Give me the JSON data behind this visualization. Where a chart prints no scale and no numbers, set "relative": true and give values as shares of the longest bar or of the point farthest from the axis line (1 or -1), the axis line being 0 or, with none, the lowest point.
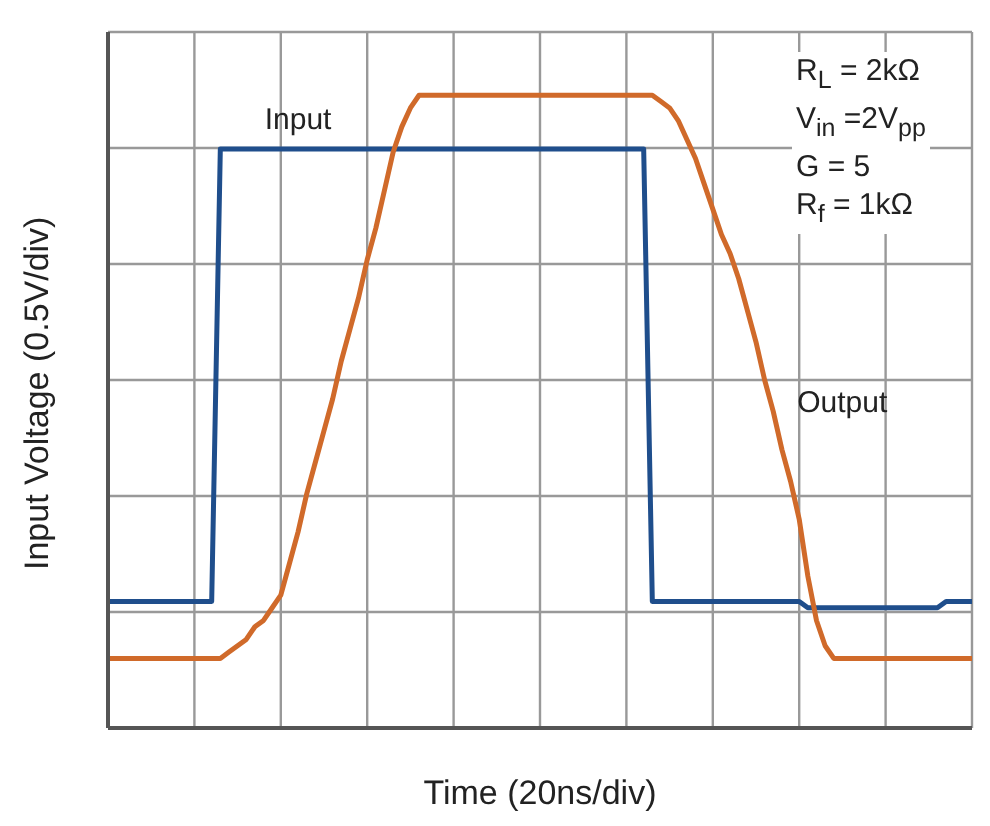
{
  "chart_data": {
    "type": "line",
    "relative": true,
    "xlabel": "Time (20ns/div)",
    "ylabel": "Input Voltage (0.5V/div)",
    "grid": true,
    "marker": "none",
    "line_style": "solid",
    "categories": [
      null,
      null,
      null,
      null,
      null,
      null,
      null,
      null,
      null,
      null,
      null,
      null,
      null,
      null,
      null,
      null,
      null,
      null,
      null,
      null,
      null,
      null,
      null,
      null,
      null,
      null,
      null,
      null,
      null,
      null,
      null,
      null,
      null,
      null,
      null,
      null,
      null,
      null,
      null,
      null,
      null,
      null,
      null,
      null,
      null,
      null,
      null,
      null,
      null,
      null,
      null,
      null,
      null,
      null,
      null,
      null,
      null,
      null,
      null,
      null,
      null,
      null,
      null,
      null,
      null,
      null,
      null,
      null,
      null,
      null,
      null,
      null,
      null,
      null,
      null,
      null,
      null,
      null,
      null,
      null,
      null,
      null,
      null,
      null,
      null,
      null,
      null,
      null,
      null,
      null,
      null,
      null,
      null,
      null,
      null,
      null,
      null,
      null,
      null,
      null,
      null
    ],
    "series": [
      {
        "name": "Input",
        "color": "#1f4e8c",
        "values": [
          0.2,
          0.2,
          0.2,
          0.2,
          0.2,
          0.2,
          0.2,
          0.2,
          0.2,
          0.2,
          0.2,
          0.2,
          0.2,
          0.915,
          0.915,
          0.915,
          0.915,
          0.915,
          0.915,
          0.915,
          0.915,
          0.915,
          0.915,
          0.915,
          0.915,
          0.915,
          0.915,
          0.915,
          0.915,
          0.915,
          0.915,
          0.915,
          0.915,
          0.915,
          0.915,
          0.915,
          0.915,
          0.915,
          0.915,
          0.915,
          0.915,
          0.915,
          0.915,
          0.915,
          0.915,
          0.915,
          0.915,
          0.915,
          0.915,
          0.915,
          0.915,
          0.915,
          0.915,
          0.915,
          0.915,
          0.915,
          0.915,
          0.915,
          0.915,
          0.915,
          0.915,
          0.915,
          0.915,
          0.2,
          0.2,
          0.2,
          0.2,
          0.2,
          0.2,
          0.2,
          0.2,
          0.2,
          0.2,
          0.2,
          0.2,
          0.2,
          0.2,
          0.2,
          0.2,
          0.2,
          0.2,
          0.19,
          0.19,
          0.19,
          0.19,
          0.19,
          0.19,
          0.19,
          0.19,
          0.19,
          0.19,
          0.19,
          0.19,
          0.19,
          0.19,
          0.19,
          0.19,
          0.2,
          0.2,
          0.2,
          0.2
        ]
      },
      {
        "name": "Output",
        "color": "#d06a2a",
        "values": [
          0.11,
          0.11,
          0.11,
          0.11,
          0.11,
          0.11,
          0.11,
          0.11,
          0.11,
          0.11,
          0.11,
          0.11,
          0.11,
          0.11,
          0.12,
          0.13,
          0.14,
          0.16,
          0.17,
          0.19,
          0.21,
          0.26,
          0.31,
          0.37,
          0.42,
          0.47,
          0.52,
          0.58,
          0.63,
          0.68,
          0.74,
          0.79,
          0.85,
          0.91,
          0.95,
          0.98,
          1,
          1,
          1,
          1,
          1,
          1,
          1,
          1,
          1,
          1,
          1,
          1,
          1,
          1,
          1,
          1,
          1,
          1,
          1,
          1,
          1,
          1,
          1,
          1,
          1,
          1,
          1,
          1,
          0.99,
          0.98,
          0.96,
          0.93,
          0.9,
          0.86,
          0.82,
          0.78,
          0.75,
          0.71,
          0.66,
          0.61,
          0.55,
          0.5,
          0.44,
          0.39,
          0.33,
          0.24,
          0.17,
          0.13,
          0.11,
          0.11,
          0.11,
          0.11,
          0.11,
          0.11,
          0.11,
          0.11,
          0.11,
          0.11,
          0.11,
          0.11,
          0.11,
          0.11,
          0.11,
          0.11,
          0.11
        ]
      }
    ],
    "annotations": [
      "R$_{L}$ = 2kΩ",
      "V$_{in}$ =2V$_{pp}$",
      "G = 5",
      "R$_{f}$ = 1kΩ"
    ]
  }
}
